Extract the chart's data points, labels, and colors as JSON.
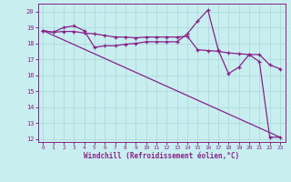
{
  "line1_x": [
    0,
    1,
    2,
    3,
    4,
    5,
    6,
    7,
    8,
    9,
    10,
    11,
    12,
    13,
    14,
    15,
    16,
    17,
    18,
    19,
    20,
    21,
    22,
    23
  ],
  "line1_y": [
    18.8,
    18.7,
    19.0,
    19.1,
    18.8,
    17.75,
    17.85,
    17.85,
    17.95,
    18.0,
    18.1,
    18.1,
    18.1,
    18.1,
    18.6,
    19.4,
    20.1,
    17.6,
    16.1,
    16.5,
    17.3,
    17.3,
    16.65,
    16.4
  ],
  "line2_x": [
    0,
    1,
    2,
    3,
    4,
    5,
    6,
    7,
    8,
    9,
    10,
    11,
    12,
    13,
    14,
    15,
    16,
    17,
    18,
    19,
    20,
    21,
    22,
    23
  ],
  "line2_y": [
    18.8,
    18.7,
    18.75,
    18.75,
    18.65,
    18.6,
    18.5,
    18.4,
    18.4,
    18.35,
    18.4,
    18.4,
    18.4,
    18.4,
    18.45,
    17.6,
    17.55,
    17.5,
    17.4,
    17.35,
    17.3,
    16.85,
    12.1,
    12.1
  ],
  "line3_x": [
    0,
    23
  ],
  "line3_y": [
    18.8,
    12.1
  ],
  "line_color": "#882288",
  "bg_color": "#C8EEF0",
  "xlabel": "Windchill (Refroidissement éolien,°C)",
  "ylim": [
    11.8,
    20.5
  ],
  "xlim": [
    -0.5,
    23.5
  ],
  "yticks": [
    12,
    13,
    14,
    15,
    16,
    17,
    18,
    19,
    20
  ],
  "xticks": [
    0,
    1,
    2,
    3,
    4,
    5,
    6,
    7,
    8,
    9,
    10,
    11,
    12,
    13,
    14,
    15,
    16,
    17,
    18,
    19,
    20,
    21,
    22,
    23
  ],
  "grid_color": "#A8D8D8",
  "marker": "+"
}
